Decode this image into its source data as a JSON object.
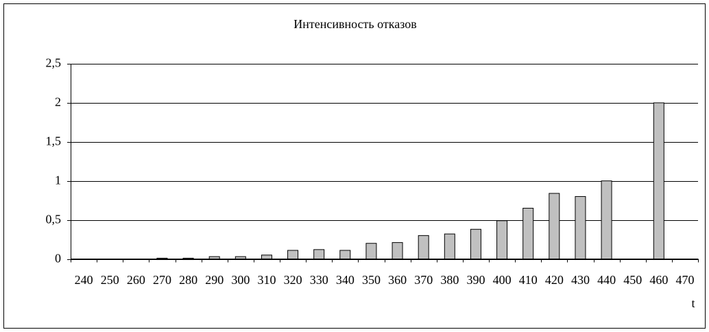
{
  "chart_data": {
    "type": "bar",
    "title": "Интенсивность отказов",
    "x_label": "t",
    "categories": [
      "240",
      "250",
      "260",
      "270",
      "280",
      "290",
      "300",
      "310",
      "320",
      "330",
      "340",
      "350",
      "360",
      "370",
      "380",
      "390",
      "400",
      "410",
      "420",
      "430",
      "440",
      "450",
      "460",
      "470"
    ],
    "values": [
      0,
      0,
      0,
      0.01,
      0.01,
      0.03,
      0.03,
      0.05,
      0.11,
      0.12,
      0.11,
      0.2,
      0.21,
      0.3,
      0.32,
      0.38,
      0.49,
      0.65,
      0.84,
      0.8,
      1.0,
      0,
      2.0,
      0
    ],
    "color": "#c0c0c0",
    "ylim": [
      0,
      2.5
    ],
    "yticks": [
      0,
      {
        "value": 0.5,
        "label": "0,5"
      },
      1,
      {
        "value": 1.5,
        "label": "1,5"
      },
      2,
      {
        "value": 2.5,
        "label": "2,5"
      }
    ],
    "grid": true
  }
}
